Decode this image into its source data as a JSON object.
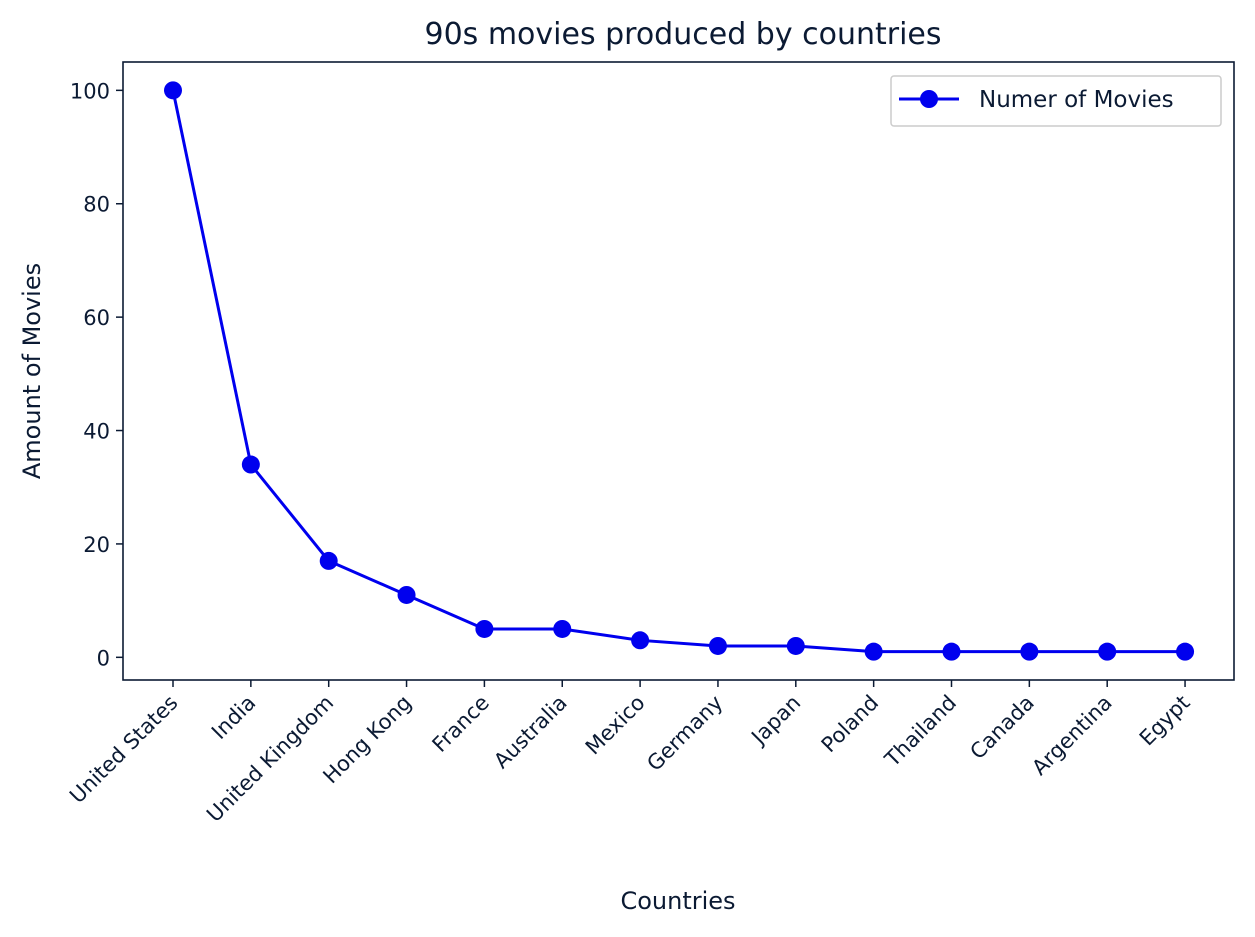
{
  "chart_data": {
    "type": "line",
    "title": "90s movies produced by countries",
    "xlabel": "Countries",
    "ylabel": "Amount of Movies",
    "categories": [
      "United States",
      "India",
      "United Kingdom",
      "Hong Kong",
      "France",
      "Australia",
      "Mexico",
      "Germany",
      "Japan",
      "Poland",
      "Thailand",
      "Canada",
      "Argentina",
      "Egypt"
    ],
    "series": [
      {
        "name": "Numer of Movies",
        "values": [
          100,
          34,
          17,
          11,
          5,
          5,
          3,
          2,
          2,
          1,
          1,
          1,
          1,
          1
        ],
        "color": "#0000ee"
      }
    ],
    "ylim": [
      -4,
      105
    ],
    "yticks": [
      0,
      20,
      40,
      60,
      80,
      100
    ],
    "grid": false,
    "legend_position": "top-right",
    "text_color": "#0b1a33"
  }
}
